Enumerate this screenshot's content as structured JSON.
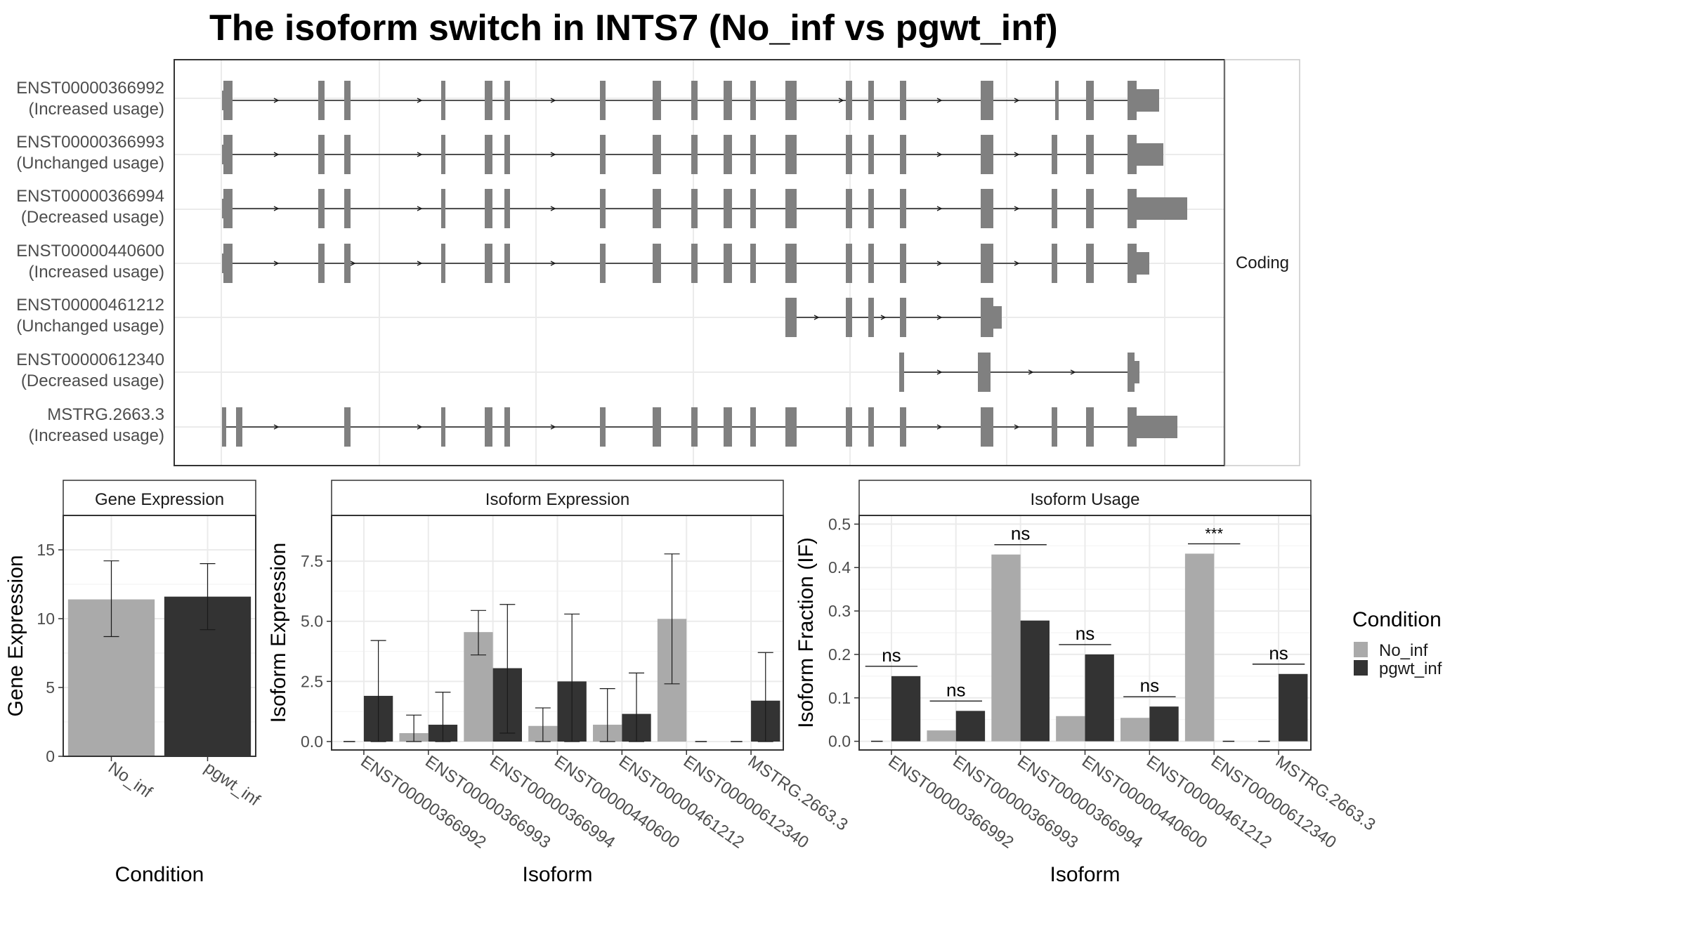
{
  "title": "The isoform switch in INTS7 (No_inf vs pgwt_inf)",
  "colors": {
    "no_inf": "#aaaaaa",
    "pgwt_inf": "#333333",
    "exon": "#808080",
    "grid": "#ebebeb",
    "panel_border": "#333333"
  },
  "structure_panel": {
    "facet_label": "Coding",
    "transcripts": [
      {
        "id": "ENST00000366992",
        "usage": "(Increased usage)"
      },
      {
        "id": "ENST00000366993",
        "usage": "(Unchanged usage)"
      },
      {
        "id": "ENST00000366994",
        "usage": "(Decreased usage)"
      },
      {
        "id": "ENST00000440600",
        "usage": "(Increased usage)"
      },
      {
        "id": "ENST00000461212",
        "usage": "(Unchanged usage)"
      },
      {
        "id": "ENST00000612340",
        "usage": "(Decreased usage)"
      },
      {
        "id": "MSTRG.2663.3",
        "usage": "(Increased usage)"
      }
    ]
  },
  "chart_data": [
    {
      "type": "bar",
      "title": "Gene Expression",
      "xlabel": "Condition",
      "ylabel": "Gene Expression",
      "categories": [
        "No_inf",
        "pgwt_inf"
      ],
      "values": [
        11.4,
        11.6
      ],
      "error_low": [
        8.7,
        9.2
      ],
      "error_high": [
        14.2,
        14.0
      ],
      "ylim": [
        0,
        17.5
      ],
      "yticks": [
        0,
        5,
        10,
        15
      ],
      "ytick_labels": [
        "0",
        "5",
        "10",
        "15"
      ]
    },
    {
      "type": "bar",
      "title": "Isoform Expression",
      "xlabel": "Isoform",
      "ylabel": "Isoform Expression",
      "categories": [
        "ENST00000366992",
        "ENST00000366993",
        "ENST00000366994",
        "ENST00000440600",
        "ENST00000461212",
        "ENST00000612340",
        "MSTRG.2663.3"
      ],
      "series": [
        {
          "name": "No_inf",
          "values": [
            0,
            0.35,
            4.55,
            0.65,
            0.7,
            5.1,
            0
          ],
          "error_low": [
            0,
            0,
            3.6,
            0,
            0,
            2.4,
            0
          ],
          "error_high": [
            0,
            1.1,
            5.45,
            1.4,
            2.2,
            7.8,
            0
          ]
        },
        {
          "name": "pgwt_inf",
          "values": [
            1.9,
            0.7,
            3.05,
            2.5,
            1.15,
            0,
            1.7
          ],
          "error_low": [
            0,
            0,
            0.35,
            0,
            0,
            0,
            0
          ],
          "error_high": [
            4.2,
            2.05,
            5.7,
            5.3,
            2.85,
            0,
            3.7
          ]
        }
      ],
      "ylim": [
        -0.35,
        9.4
      ],
      "yticks": [
        0,
        2.5,
        5,
        7.5
      ],
      "ytick_labels": [
        "0.0",
        "2.5",
        "5.0",
        "7.5"
      ]
    },
    {
      "type": "bar",
      "title": "Isoform Usage",
      "xlabel": "Isoform",
      "ylabel": "Isoform Fraction (IF)",
      "categories": [
        "ENST00000366992",
        "ENST00000366993",
        "ENST00000366994",
        "ENST00000440600",
        "ENST00000461212",
        "ENST00000612340",
        "MSTRG.2663.3"
      ],
      "series": [
        {
          "name": "No_inf",
          "values": [
            0,
            0.025,
            0.43,
            0.058,
            0.054,
            0.432,
            0
          ]
        },
        {
          "name": "pgwt_inf",
          "values": [
            0.15,
            0.07,
            0.278,
            0.2,
            0.08,
            0,
            0.155
          ]
        }
      ],
      "significance": [
        "ns",
        "ns",
        "ns",
        "ns",
        "ns",
        "***",
        "ns"
      ],
      "ylim": [
        -0.02,
        0.52
      ],
      "yticks": [
        0,
        0.1,
        0.2,
        0.3,
        0.4,
        0.5
      ],
      "ytick_labels": [
        "0.0",
        "0.1",
        "0.2",
        "0.3",
        "0.4",
        "0.5"
      ]
    }
  ],
  "legend": {
    "title": "Condition",
    "items": [
      {
        "label": "No_inf",
        "color": "#aaaaaa"
      },
      {
        "label": "pgwt_inf",
        "color": "#333333"
      }
    ]
  }
}
